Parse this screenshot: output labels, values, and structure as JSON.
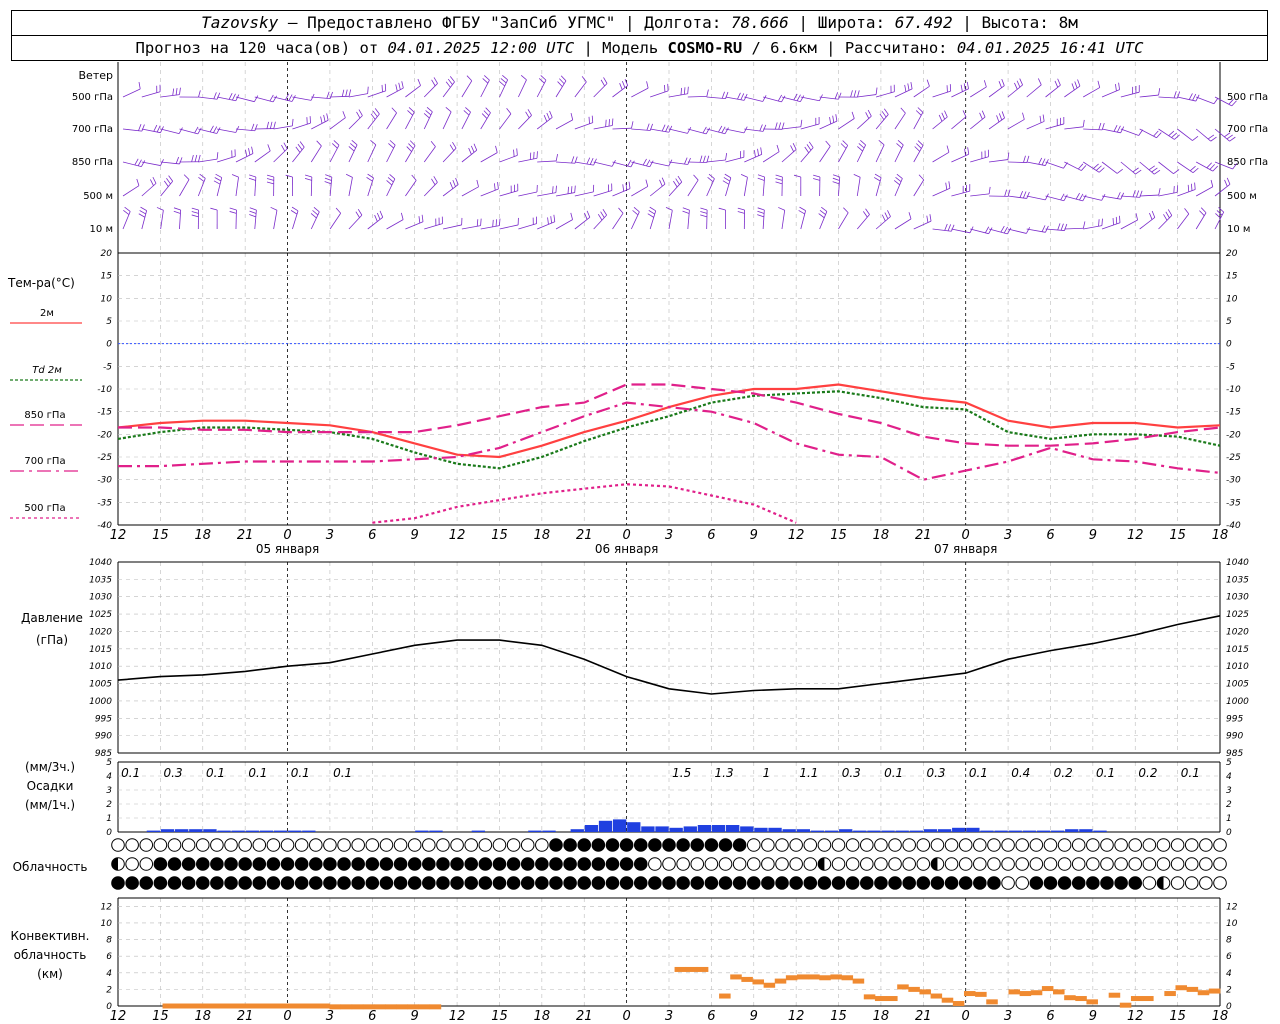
{
  "header": {
    "station": "Tazovsky",
    "provider": "– Предоставлено ФГБУ \"ЗапСиб УГМС\"",
    "lon_label": "Долгота:",
    "lon": "78.666",
    "lat_label": "Широта:",
    "lat": "67.492",
    "alt_label": "Высота:",
    "alt": "8м",
    "forecast_label": "Прогноз на 120 часа(ов) от",
    "init_time": "04.01.2025 12:00 UTC",
    "model_label": "Модель",
    "model": "COSMO-RU",
    "resolution": "/ 6.6км",
    "calc_label": "Рассчитано:",
    "calc_time": "04.01.2025 16:41 UTC"
  },
  "colors": {
    "t2m": "#ff4040",
    "td2m": "#1a7a1a",
    "t850": "#e0208a",
    "t700": "#e0208a",
    "t500": "#e0208a",
    "wind": "#7a2aca",
    "pressure": "#000000",
    "precip": "#2040e0",
    "convective": "#f08a30",
    "zero_line": "#3050ff",
    "grid": "#999999"
  },
  "time_axis": {
    "hour_labels": [
      "12",
      "15",
      "18",
      "21",
      "0",
      "3",
      "6",
      "9",
      "12",
      "15",
      "18",
      "21",
      "0",
      "3",
      "6",
      "9",
      "12",
      "15",
      "18",
      "21",
      "0",
      "3",
      "6",
      "9",
      "12",
      "15",
      "18"
    ],
    "date_labels": [
      "05 января",
      "06 января",
      "07 января"
    ]
  },
  "wind_panel": {
    "title": "Ветер",
    "levels": [
      "500 гПа",
      "700 гПа",
      "850 гПа",
      "500 м",
      "10  м"
    ]
  },
  "temp_panel": {
    "title": "Тем-ра(°С)",
    "legend": [
      "2м",
      "Td  2м",
      "850 гПа",
      "700 гПа",
      "500 гПа"
    ],
    "yticks": [
      "20",
      "15",
      "10",
      "5",
      "0",
      "-5",
      "-10",
      "-15",
      "-20",
      "-25",
      "-30",
      "-35",
      "-40"
    ]
  },
  "pressure_panel": {
    "title_line1": "Давление",
    "title_line2": "(гПа)",
    "yticks": [
      "1040",
      "1035",
      "1030",
      "1025",
      "1020",
      "1015",
      "1010",
      "1005",
      "1000",
      "995",
      "990",
      "985"
    ]
  },
  "precip_panel": {
    "title_line1": "(мм/3ч.)",
    "title_line2": "Осадки",
    "title_line3": "(мм/1ч.)",
    "yticks": [
      "5",
      "4",
      "3",
      "2",
      "1",
      "0"
    ],
    "labels_3h": [
      "0.1",
      "0.3",
      "0.1",
      "0.1",
      "0.1",
      "0.1",
      "1.5",
      "1.3",
      "1",
      "1.1",
      "0.3",
      "0.1",
      "0.3",
      "0.1",
      "0.4",
      "0.2",
      "0.1",
      "0.2",
      "0.1"
    ]
  },
  "cloud_panel": {
    "title": "Облачность"
  },
  "conv_panel": {
    "title_line1": "Конвективн.",
    "title_line2": "облачность",
    "title_line3": "(км)",
    "yticks": [
      "12",
      "10",
      "8",
      "6",
      "4",
      "2",
      "0"
    ]
  },
  "chart_data": {
    "type": "line",
    "lead_hours": [
      0,
      3,
      6,
      9,
      12,
      15,
      18,
      21,
      24,
      27,
      30,
      33,
      36,
      39,
      42,
      45,
      48,
      51,
      54,
      57,
      60,
      63,
      66,
      69,
      72,
      75,
      78
    ],
    "series": [
      {
        "name": "2м",
        "values": [
          -18.5,
          -17.5,
          -17,
          -17,
          -17.5,
          -18,
          -19.5,
          -22,
          -24.5,
          -25,
          -22.5,
          -19.5,
          -17,
          -14,
          -11.5,
          -10,
          -10,
          -9,
          -10.5,
          -12,
          -13,
          -17,
          -18.5,
          -17.5,
          -17.5,
          -18.5,
          -18
        ]
      },
      {
        "name": "Td  2м",
        "values": [
          -21,
          -19.5,
          -18.5,
          -18.5,
          -19,
          -19.5,
          -21,
          -24,
          -26.5,
          -27.5,
          -25,
          -21.5,
          -18.5,
          -16,
          -13,
          -11.5,
          -11,
          -10.5,
          -12,
          -14,
          -14.5,
          -19.5,
          -21,
          -20,
          -20,
          -20.5,
          -22.5
        ]
      },
      {
        "name": "850 гПа",
        "values": [
          -18.5,
          -18.5,
          -19,
          -19,
          -19.5,
          -19.5,
          -19.5,
          -19.5,
          -18,
          -16,
          -14,
          -13,
          -9,
          -9,
          -10,
          -11,
          -13,
          -15.5,
          -17.5,
          -20.5,
          -22,
          -22.5,
          -22.5,
          -22,
          -21,
          -19.5,
          -18.5
        ]
      },
      {
        "name": "700 гПа",
        "values": [
          -27,
          -27,
          -26.5,
          -26,
          -26,
          -26,
          -26,
          -25.5,
          -25,
          -23,
          -19.5,
          -16,
          -13,
          -14,
          -15,
          -17.5,
          -22,
          -24.5,
          -25,
          -30,
          -28,
          -26,
          -23,
          -25.5,
          -26,
          -27.5,
          -28.5
        ]
      },
      {
        "name": "500 гПа",
        "values": [
          null,
          null,
          null,
          null,
          null,
          null,
          -39.5,
          -38.5,
          -36,
          -34.5,
          -33,
          -32,
          -31,
          -31.5,
          -33.5,
          -35.5,
          -39.5,
          null,
          null,
          null,
          null,
          null,
          null,
          null,
          null,
          null,
          null
        ]
      }
    ],
    "pressure": [
      1006,
      1007,
      1007.5,
      1008.5,
      1010,
      1011,
      1013.5,
      1016,
      1017.5,
      1017.5,
      1016,
      1012,
      1007,
      1003.5,
      1002,
      1003,
      1003.5,
      1003.5,
      1005,
      1006.5,
      1008,
      1012,
      1014.5,
      1016.5,
      1019,
      1022,
      1024.5
    ],
    "precip_1h": [
      0,
      0,
      0.1,
      0.2,
      0.2,
      0.2,
      0.2,
      0.1,
      0.1,
      0.1,
      0.1,
      0.1,
      0.1,
      0.1,
      0,
      0,
      0,
      0,
      0,
      0,
      0,
      0.1,
      0.1,
      0,
      0,
      0.1,
      0,
      0,
      0,
      0.1,
      0.1,
      0,
      0.2,
      0.5,
      0.8,
      0.9,
      0.7,
      0.4,
      0.4,
      0.3,
      0.4,
      0.5,
      0.5,
      0.5,
      0.4,
      0.3,
      0.3,
      0.2,
      0.2,
      0.1,
      0.1,
      0.2,
      0.1,
      0.1,
      0.1,
      0.1,
      0.1,
      0.2,
      0.2,
      0.3,
      0.3,
      0.1,
      0.1,
      0.1,
      0.1,
      0.1,
      0.1,
      0.2,
      0.2,
      0.1,
      0,
      0,
      0,
      0,
      0,
      0,
      0,
      0
    ],
    "conv_top_km": [
      null,
      null,
      null,
      null,
      0.3,
      0.3,
      0.3,
      0.3,
      0.3,
      0.3,
      0.3,
      0.3,
      0.3,
      0.3,
      0.3,
      0.3,
      0.3,
      0.3,
      0.3,
      0.2,
      0.2,
      0.2,
      0.2,
      0.2,
      0.2,
      0.2,
      0.2,
      0.2,
      0.2,
      null,
      null,
      null,
      null,
      null,
      null,
      null,
      null,
      null,
      null,
      null,
      null,
      null,
      null,
      null,
      null,
      null,
      null,
      null,
      null,
      null,
      4.7,
      4.7,
      4.7,
      null,
      1.5,
      3.8,
      3.5,
      3.2,
      2.8,
      3.3,
      3.7,
      3.8,
      3.8,
      3.7,
      3.8,
      3.7,
      3.3,
      1.4,
      1.2,
      1.2,
      2.6,
      2.3,
      2.0,
      1.5,
      1.0,
      0.6,
      1.8,
      1.7,
      0.8,
      null,
      2.0,
      1.8,
      1.9,
      2.4,
      2.0,
      1.3,
      1.2,
      0.8,
      null,
      1.6,
      0.4,
      1.2,
      1.2,
      null,
      1.8,
      2.5,
      2.3,
      1.9,
      2.1
    ]
  }
}
